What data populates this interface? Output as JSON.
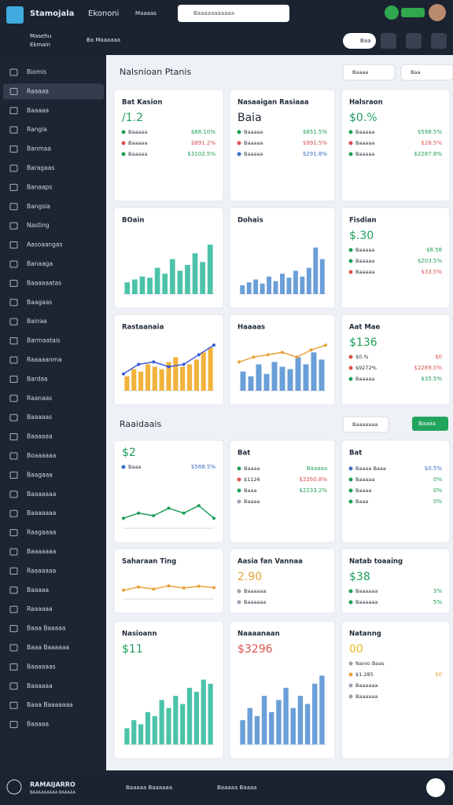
{
  "header": {
    "brand": "Stamojala",
    "nav": [
      "Ekononi",
      "Maaaas"
    ],
    "search": "Baaaaaaaaaaa"
  },
  "subheader": {
    "workspace": [
      "Masehu",
      "Ekmain"
    ],
    "menu": "Ba Maaaaaa",
    "button": "Baa"
  },
  "sidebar": [
    "Biomis",
    "Raaaaa",
    "Baaaaa",
    "Rangia",
    "Banmaa",
    "Baragaas",
    "Banaaps",
    "Bangsia",
    "Nasting",
    "Aasoaangas",
    "Banaaga",
    "Baaaaaatas",
    "Baagaas",
    "Bainaa",
    "Barmaatais",
    "Raaaaanma",
    "Bardaa",
    "Raanaas",
    "Baaaaas",
    "Baaaaaa",
    "Boaaaaaa",
    "Baagaaa",
    "Baaaaaaa",
    "Baaaaaaa",
    "Raagaaaa",
    "Baaaaaaa",
    "Raaaaaaa",
    "Baaaaa",
    "Raaaaaa",
    "Baaa Baaaaa",
    "Baaa Baaaaaa",
    "Baaaaaas",
    "Baaaaaa",
    "Baaa Baaaaaaa",
    "Baaaaa"
  ],
  "sections": [
    {
      "title": "Nalsnioan Ptanis",
      "filters": [
        "Baaaa",
        "Baa"
      ],
      "cards": [
        {
          "title": "Bat Kasion",
          "big": "/1.2",
          "big_color": "#1e9e5a",
          "rows": [
            {
              "label": "Baaaaa",
              "value": "$88.10%",
              "color": "#1e9e5a"
            },
            {
              "label": "Baaaaa",
              "value": "$891.2%",
              "color": "#d9534f"
            },
            {
              "label": "Baaaaa",
              "value": "$3102.5%",
              "color": "#1e9e5a"
            }
          ]
        },
        {
          "title": "Nasaaigan Rasiaaa",
          "big": "Baia",
          "rows": [
            {
              "label": "Baaaaa",
              "value": "$851.5%",
              "color": "#1e9e5a"
            },
            {
              "label": "Baaaaa",
              "value": "$991.5%",
              "color": "#d9534f"
            },
            {
              "label": "Baaaaa",
              "value": "$291.8%",
              "color": "#3b6fc4"
            }
          ]
        },
        {
          "title": "Halsraon",
          "big": "$0.%",
          "big_color": "#1e9e5a",
          "rows": [
            {
              "label": "Baaaaa",
              "value": "$598.5%",
              "color": "#1e9e5a"
            },
            {
              "label": "Baaaaa",
              "value": "$28.5%",
              "color": "#d9534f"
            },
            {
              "label": "Baaaaa",
              "value": "$2287.8%",
              "color": "#1e9e5a"
            }
          ]
        },
        {
          "title": "BOain",
          "chart": {
            "kind": "bar",
            "color": "#4cc3a8",
            "ylim": [
              0,
              100
            ],
            "values": [
              20,
              25,
              30,
              28,
              45,
              35,
              60,
              40,
              50,
              70,
              55,
              85
            ]
          }
        },
        {
          "title": "Dohais",
          "chart": {
            "kind": "bar",
            "color": "#6a9fd8",
            "ylim": [
              0,
              100
            ],
            "values": [
              15,
              20,
              25,
              18,
              30,
              22,
              35,
              28,
              40,
              30,
              45,
              80,
              60
            ]
          }
        },
        {
          "title": "Fisdian",
          "big": "$.30",
          "big_color": "#1e9e5a",
          "rows": [
            {
              "label": "Baaaaa",
              "value": "$8.58",
              "color": "#1e9e5a"
            },
            {
              "label": "Baaaaa",
              "value": "$203.5%",
              "color": "#1e9e5a"
            },
            {
              "label": "Baaaaa",
              "value": "$33.5%",
              "color": "#d9534f"
            }
          ]
        },
        {
          "title": "Rastaanaia",
          "chart": {
            "kind": "bar",
            "color": "#f2b33d",
            "ylim": [
              0,
              100
            ],
            "values": [
              30,
              45,
              40,
              55,
              50,
              45,
              60,
              70,
              50,
              55,
              65,
              80,
              90
            ],
            "line": [
              35,
              55,
              60,
              50,
              55,
              75,
              95
            ],
            "line_color": "#3b5bdb"
          }
        },
        {
          "title": "Haaaas",
          "chart": {
            "kind": "bar",
            "color": "#6a9fd8",
            "ylim": [
              0,
              100
            ],
            "values": [
              40,
              30,
              55,
              35,
              60,
              50,
              45,
              70,
              55,
              80,
              65
            ],
            "line": [
              60,
              70,
              75,
              80,
              70,
              85,
              95
            ],
            "line_color": "#e8a23b"
          }
        },
        {
          "title": "Aat Mae",
          "big": "$136",
          "big_color": "#1e9e5a",
          "rows": [
            {
              "label": "$0.%",
              "value": "$0",
              "color": "#d9534f"
            },
            {
              "label": "$9272%",
              "value": "$2289.5%",
              "color": "#d9534f"
            },
            {
              "label": "Baaaaa",
              "value": "$35.5%",
              "color": "#1e9e5a"
            }
          ]
        }
      ]
    },
    {
      "title": "Raaidaais",
      "filters": [
        "Baaaaaaa"
      ],
      "action": "Baaaa",
      "cards": [
        {
          "big": "$2",
          "big_color": "#1e9e5a",
          "rows": [
            {
              "label": "Baaa",
              "value": "$588.5%",
              "color": "#3b6fc4"
            }
          ],
          "chart": {
            "kind": "line",
            "color": "#1e9e5a",
            "ylim": [
              0,
              100
            ],
            "values": [
              20,
              30,
              25,
              40,
              30,
              45,
              20
            ]
          }
        },
        {
          "title": "Bat",
          "rows": [
            {
              "label": "Baaaa",
              "value": "Baaaaa",
              "color": "#1e9e5a"
            },
            {
              "label": "$1126",
              "value": "$2260.8%",
              "color": "#d9534f"
            },
            {
              "label": "Baaa",
              "value": "$2233.2%",
              "color": "#1e9e5a"
            },
            {
              "label": "Baaaa",
              "value": ""
            }
          ]
        },
        {
          "title": "Bat",
          "rows": [
            {
              "label": "Baaaa Baaa",
              "value": "$0.5%",
              "color": "#3b6fc4"
            },
            {
              "label": "Baaaaa",
              "value": "0%",
              "color": "#1e9e5a"
            },
            {
              "label": "Baaaa",
              "value": "0%",
              "color": "#1e9e5a"
            },
            {
              "label": "Baaa",
              "value": "0%",
              "color": "#1e9e5a"
            }
          ]
        },
        {
          "title": "Saharaan Ting",
          "chart": {
            "kind": "line",
            "color": "#e8a23b",
            "ylim": [
              0,
              100
            ],
            "values": [
              40,
              55,
              45,
              60,
              50,
              58,
              52
            ]
          }
        },
        {
          "title": "Aasia fan Vannaa",
          "big": "2.90",
          "big_color": "#e8a23b",
          "rows": [
            {
              "label": "Baaaaaa",
              "value": ""
            },
            {
              "label": "Baaaaaa",
              "value": ""
            }
          ]
        },
        {
          "title": "Natab toaaing",
          "big": "$38",
          "big_color": "#1e9e5a",
          "rows": [
            {
              "label": "Baaaaaa",
              "value": "3%",
              "color": "#1e9e5a"
            },
            {
              "label": "Baaaaaa",
              "value": "5%",
              "color": "#1e9e5a"
            }
          ]
        },
        {
          "title": "Nasioann",
          "big": "$11",
          "big_color": "#1e9e5a",
          "chart": {
            "kind": "bar",
            "color": "#4cc3a8",
            "ylim": [
              0,
              100
            ],
            "values": [
              20,
              30,
              25,
              40,
              35,
              55,
              45,
              60,
              50,
              70,
              65,
              80,
              75
            ]
          }
        },
        {
          "title": "Naaaanaan",
          "big": "$3296",
          "big_color": "#d9534f",
          "chart": {
            "kind": "bar",
            "color": "#6a9fd8",
            "ylim": [
              0,
              100
            ],
            "values": [
              30,
              45,
              35,
              60,
              40,
              55,
              70,
              45,
              60,
              50,
              75,
              85
            ]
          }
        },
        {
          "title": "Natanng",
          "big": "00",
          "big_color": "#e8b81b",
          "rows": [
            {
              "label": "Nanio Baas",
              "value": ""
            },
            {
              "label": "$1.285",
              "value": "$0",
              "color": "#e8a23b"
            },
            {
              "label": "Baaaaaa",
              "value": ""
            },
            {
              "label": "Baaaaaa",
              "value": ""
            }
          ]
        }
      ]
    }
  ],
  "footer": {
    "brand": [
      "RAMAIJARRO",
      "BAAAAAAAAA BAAAAA"
    ],
    "links": [
      "Baaaaa Baaaaaa",
      "Baaaaa Baaaa"
    ]
  }
}
